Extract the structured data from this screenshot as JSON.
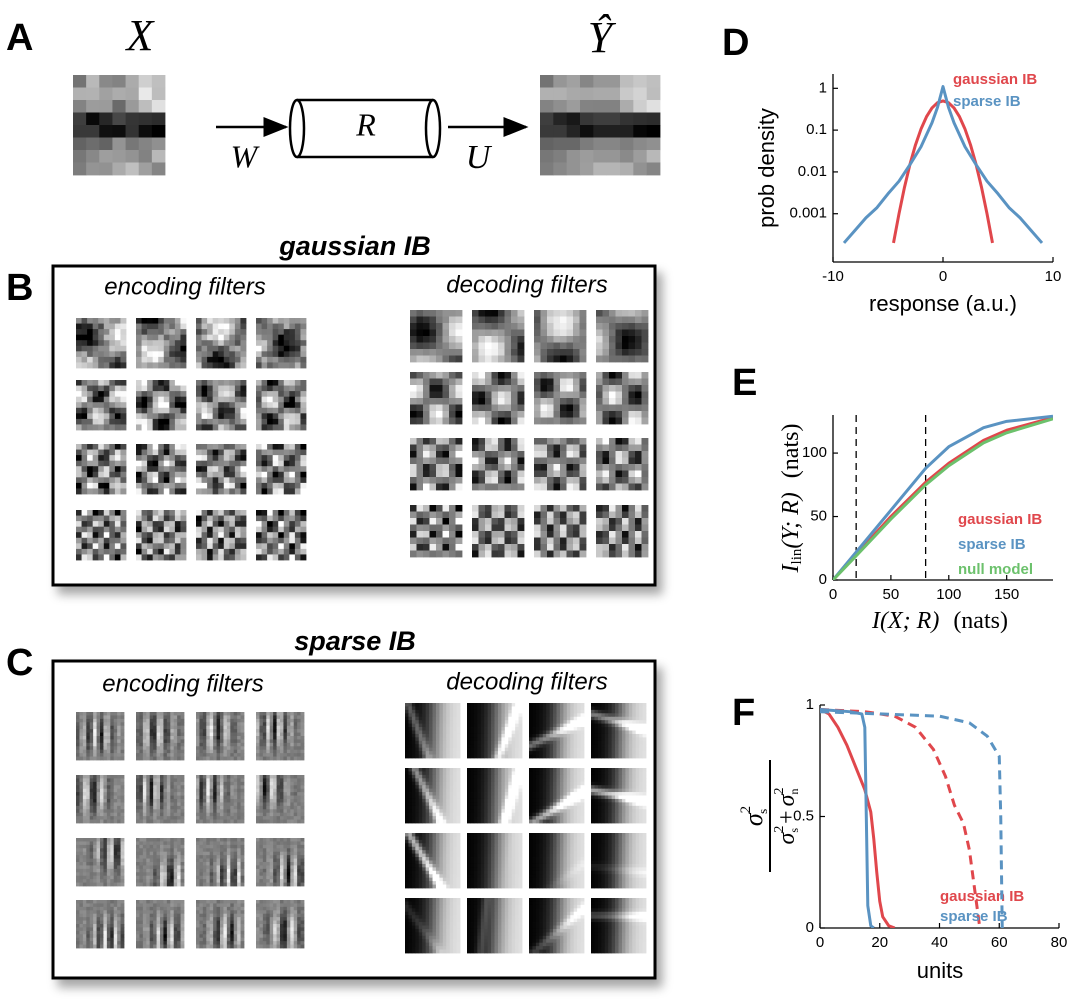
{
  "panel_labels": [
    "A",
    "B",
    "C",
    "D",
    "E",
    "F"
  ],
  "panel_a": {
    "input": "X",
    "encoder": "W",
    "representation": "R",
    "decoder": "U",
    "output": "Ŷ"
  },
  "panel_b": {
    "title": "gaussian IB",
    "left": "encoding filters",
    "right": "decoding filters"
  },
  "panel_c": {
    "title": "sparse IB",
    "left": "encoding filters",
    "right": "decoding filters"
  },
  "chart_data": [
    {
      "type": "line",
      "ylabel": "prob density",
      "xlabel": "response (a.u.)",
      "xlim": [
        -10,
        10
      ],
      "xticks": [
        -10,
        0,
        10
      ],
      "ylog": true,
      "ylim": [
        7e-05,
        2.2
      ],
      "yticks": [
        0.001,
        0.01,
        0.1,
        1
      ],
      "legend": "top-right",
      "series": [
        {
          "name": "gaussian IB",
          "color": "#e0474c",
          "x": [
            -4.5,
            -4,
            -3.5,
            -3,
            -2.5,
            -2,
            -1.5,
            -1,
            -0.5,
            0,
            0.5,
            1,
            1.5,
            2,
            2.5,
            3,
            3.5,
            4,
            4.5
          ],
          "values": [
            0.0002,
            0.001,
            0.0043,
            0.0153,
            0.0445,
            0.106,
            0.209,
            0.339,
            0.454,
            0.5,
            0.454,
            0.339,
            0.209,
            0.106,
            0.0445,
            0.0153,
            0.0043,
            0.001,
            0.0002
          ]
        },
        {
          "name": "sparse IB",
          "color": "#5a93c2",
          "x": [
            -9,
            -8,
            -7,
            -6,
            -5,
            -4,
            -3,
            -2,
            -1,
            -0.5,
            0,
            0.5,
            1,
            2,
            3,
            4,
            5,
            6,
            7,
            8,
            9
          ],
          "values": [
            0.0002,
            0.0004,
            0.0008,
            0.0014,
            0.003,
            0.006,
            0.015,
            0.04,
            0.15,
            0.35,
            1.1,
            0.35,
            0.15,
            0.04,
            0.015,
            0.006,
            0.003,
            0.0014,
            0.0008,
            0.0004,
            0.0002
          ]
        }
      ]
    },
    {
      "type": "line",
      "ylabel": {
        "main": "I",
        "sub": "lin",
        "args": "(Y; R)",
        "unit": "(nats)"
      },
      "xlabel": {
        "main": "I(X; R)",
        "unit": "(nats)"
      },
      "xlim": [
        0,
        190
      ],
      "xticks": [
        0,
        50,
        100,
        150
      ],
      "ylim": [
        0,
        130
      ],
      "yticks": [
        0,
        50,
        100
      ],
      "vlines": [
        20,
        80
      ],
      "legend": "bottom-right",
      "series": [
        {
          "name": "gaussian IB",
          "color": "#e0474c",
          "x": [
            0,
            20,
            50,
            80,
            100,
            130,
            150,
            190
          ],
          "values": [
            0,
            20,
            50,
            77,
            92,
            110,
            118,
            128
          ]
        },
        {
          "name": "sparse IB",
          "color": "#5a93c2",
          "x": [
            0,
            20,
            50,
            80,
            100,
            130,
            150,
            190
          ],
          "values": [
            0,
            22,
            55,
            88,
            105,
            120,
            125,
            129
          ]
        },
        {
          "name": "null model",
          "color": "#6cc16c",
          "x": [
            0,
            20,
            50,
            80,
            100,
            130,
            150,
            190
          ],
          "values": [
            0,
            19,
            48,
            75,
            90,
            108,
            116,
            127
          ]
        }
      ]
    },
    {
      "type": "line",
      "ylabel": {
        "numerator": {
          "base": "σ",
          "sup": "2",
          "sub": "s"
        },
        "denominator": [
          {
            "base": "σ",
            "sup": "2",
            "sub": "s"
          },
          {
            "base": "σ",
            "sup": "2",
            "sub": "n"
          }
        ],
        "operator": "+"
      },
      "xlabel": "units",
      "xlim": [
        0,
        80
      ],
      "xticks": [
        0,
        20,
        40,
        60,
        80
      ],
      "ylim": [
        0,
        1
      ],
      "yticks": [
        0,
        0.5,
        1
      ],
      "legend": "bottom-right",
      "series": [
        {
          "name": "gaussian IB",
          "color": "#e0474c",
          "lines": [
            {
              "style": "solid",
              "x": [
                0,
                3,
                6,
                9,
                12,
                15,
                17,
                18,
                19,
                20,
                21,
                23,
                25
              ],
              "values": [
                0.98,
                0.96,
                0.9,
                0.82,
                0.72,
                0.62,
                0.52,
                0.4,
                0.25,
                0.12,
                0.05,
                0.01,
                0
              ]
            },
            {
              "style": "dashed",
              "x": [
                0,
                15,
                25,
                32,
                38,
                42,
                45,
                48,
                50,
                52,
                53,
                53.5
              ],
              "values": [
                0.98,
                0.97,
                0.95,
                0.9,
                0.8,
                0.68,
                0.55,
                0.47,
                0.35,
                0.15,
                0.05,
                0
              ]
            }
          ]
        },
        {
          "name": "sparse IB",
          "color": "#5a93c2",
          "lines": [
            {
              "style": "solid",
              "x": [
                0,
                10,
                14,
                15,
                15.5,
                16,
                17,
                18
              ],
              "values": [
                0.98,
                0.97,
                0.96,
                0.9,
                0.5,
                0.1,
                0.01,
                0
              ]
            },
            {
              "style": "dashed",
              "x": [
                0,
                20,
                40,
                50,
                56,
                60,
                60.5,
                61
              ],
              "values": [
                0.97,
                0.96,
                0.95,
                0.92,
                0.86,
                0.77,
                0.5,
                0
              ]
            }
          ]
        }
      ]
    }
  ]
}
